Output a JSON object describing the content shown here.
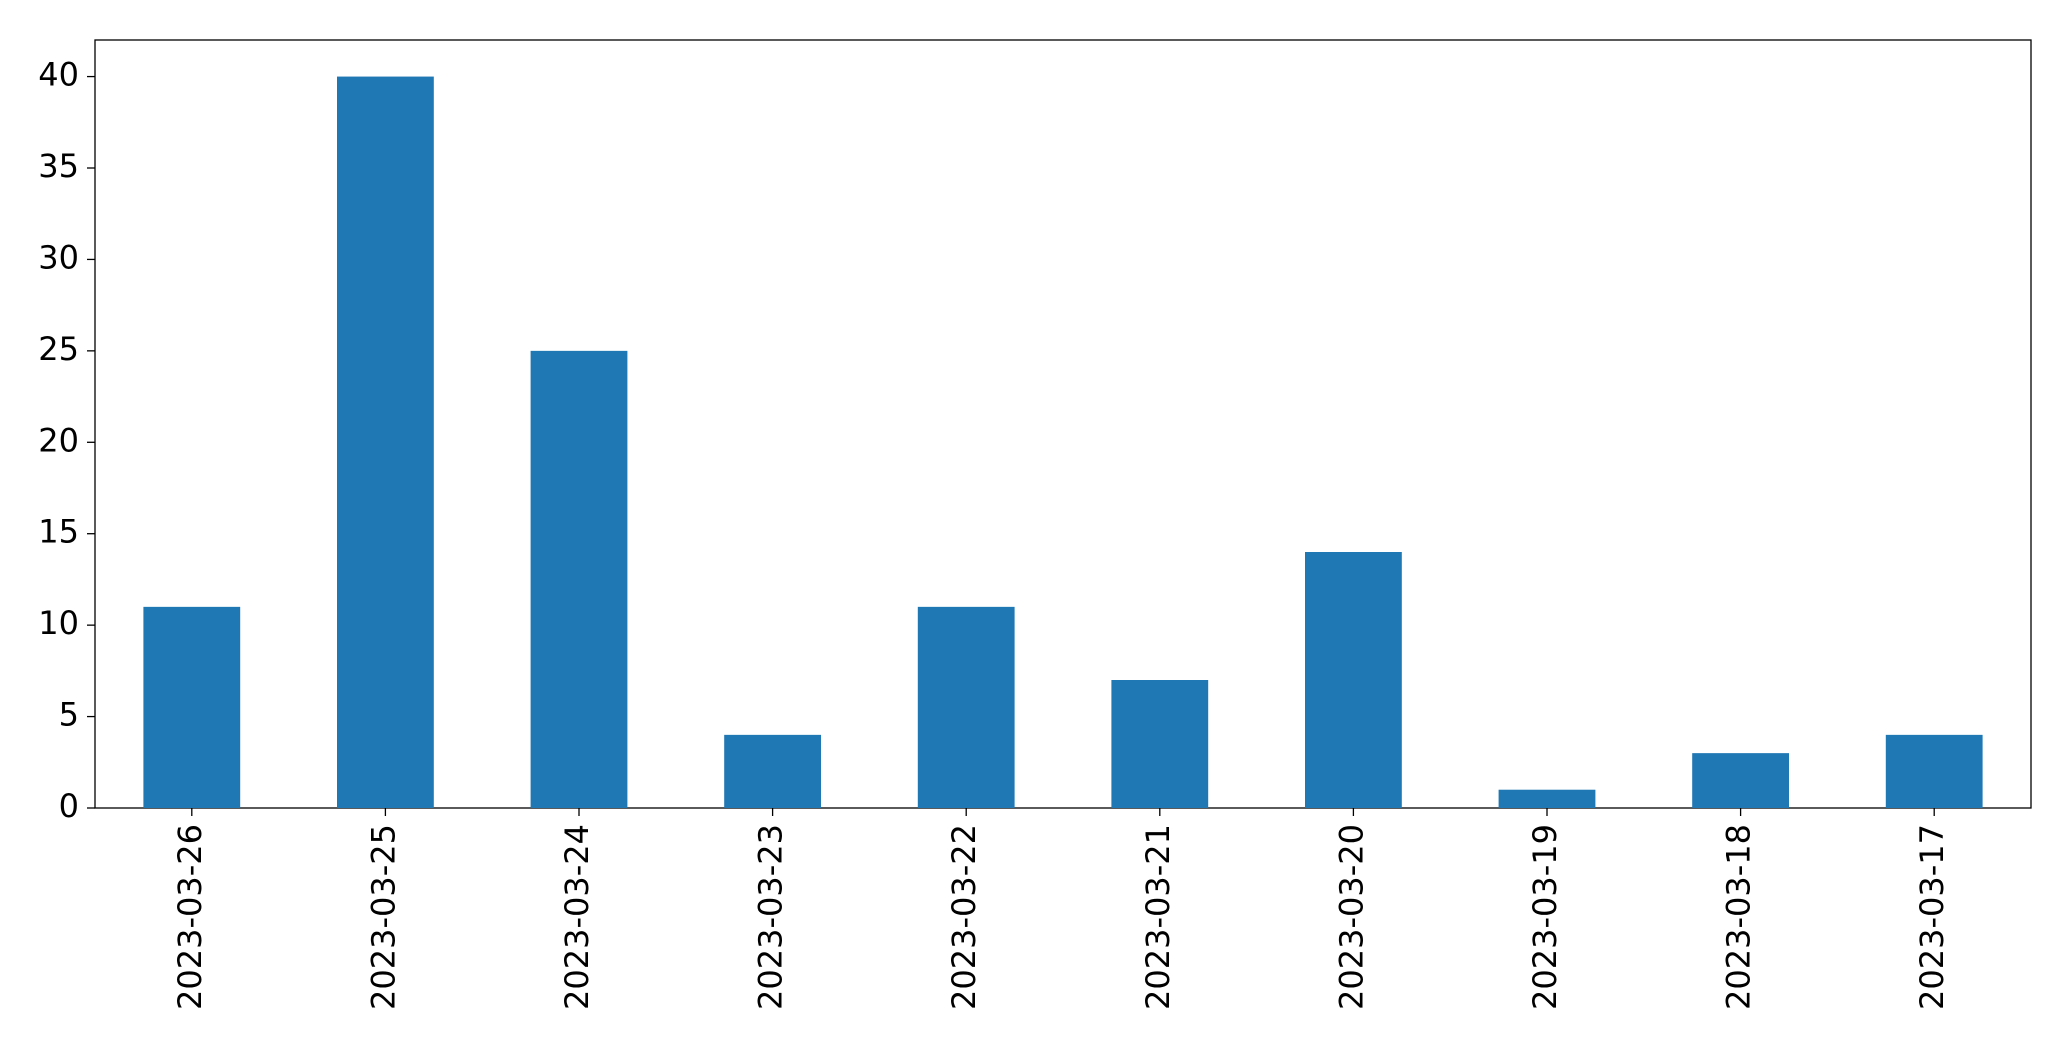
{
  "chart_data": {
    "type": "bar",
    "categories": [
      "2023-03-26",
      "2023-03-25",
      "2023-03-24",
      "2023-03-23",
      "2023-03-22",
      "2023-03-21",
      "2023-03-20",
      "2023-03-19",
      "2023-03-18",
      "2023-03-17"
    ],
    "values": [
      11,
      40,
      25,
      4,
      11,
      7,
      14,
      1,
      3,
      4
    ],
    "color": "#1f77b4",
    "ylim": [
      0,
      42
    ],
    "yticks": [
      0,
      5,
      10,
      15,
      20,
      25,
      30,
      35,
      40
    ],
    "grid": false
  }
}
